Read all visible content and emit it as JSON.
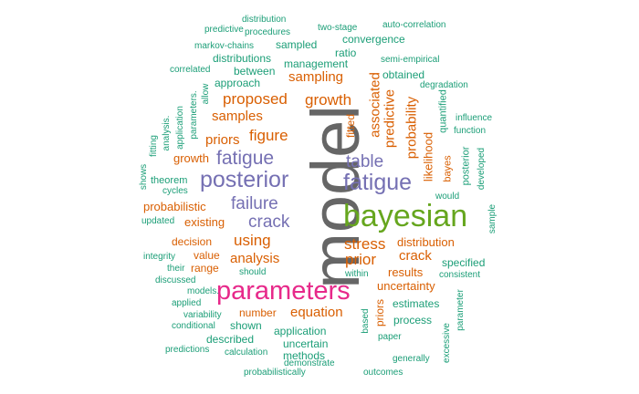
{
  "palette": {
    "teal": "#1b9e77",
    "orange": "#d95f02",
    "purple": "#7570b3",
    "pink": "#e7298a",
    "green": "#66a61e",
    "gray": "#666666"
  },
  "words": {
    "model": "model",
    "bayesian": "bayesian",
    "parameters": "parameters",
    "posterior": "posterior",
    "fatigue_right": "fatigue",
    "fatigue_left": "fatigue",
    "failure": "failure",
    "crack_left": "crack",
    "crack_right": "crack",
    "table": "table",
    "prior": "prior",
    "stress": "stress",
    "using": "using",
    "analysis": "analysis",
    "proposed": "proposed",
    "figure": "figure",
    "samples": "samples",
    "priors_left": "priors",
    "growth_mid": "growth",
    "growth_left": "growth",
    "sampling": "sampling",
    "associated": "associated",
    "predictive_vert": "predictive",
    "probability": "probability",
    "likelihood": "likelihood",
    "equation": "equation",
    "uncertainty": "uncertainty",
    "results": "results",
    "distribution_mid": "distribution",
    "existing": "existing",
    "probabilistic": "probabilistic",
    "decision": "decision",
    "value": "value",
    "range": "range",
    "number": "number",
    "shown": "shown",
    "described": "described",
    "application_mid": "application",
    "uncertain": "uncertain",
    "methods": "methods",
    "demonstrate": "demonstrate",
    "calculation": "calculation",
    "probabilistically": "probabilistically",
    "outcomes": "outcomes",
    "generally": "generally",
    "paper": "paper",
    "process": "process",
    "estimates": "estimates",
    "specified": "specified",
    "consistent": "consistent",
    "within": "within",
    "should": "should",
    "their": "their",
    "integrity": "integrity",
    "discussed": "discussed",
    "models": "models.",
    "applied": "applied",
    "variability": "variability",
    "conditional": "conditional",
    "predictions": "predictions",
    "updated": "updated",
    "cycles": "cycles",
    "theorem": "theorem",
    "shows": "shows",
    "fitting": "fitting",
    "analysis_small": "analysis.",
    "application_vert": "application",
    "parameters_small": "parameters.",
    "allow": "allow",
    "approach": "approach",
    "between": "between",
    "correlated": "correlated",
    "distributions": "distributions",
    "markov_chains": "markov-chains",
    "sampled": "sampled",
    "procedures": "procedures",
    "predictive_small": "predictive",
    "distribution_top": "distribution",
    "two_stage": "two-stage",
    "auto_correlation": "auto-correlation",
    "convergence": "convergence",
    "ratio": "ratio",
    "management": "management",
    "semi_empirical": "semi-empirical",
    "obtained": "obtained",
    "degradation": "degradation",
    "influence": "influence",
    "function": "function",
    "quantified": "quantified",
    "bayes": "bayes",
    "posterior_small": "posterior",
    "developed": "developed",
    "would": "would",
    "sample": "sample",
    "fitted": "fitted",
    "priors_vert": "priors",
    "based": "based",
    "parameter": "parameter",
    "excessive": "excessive"
  }
}
